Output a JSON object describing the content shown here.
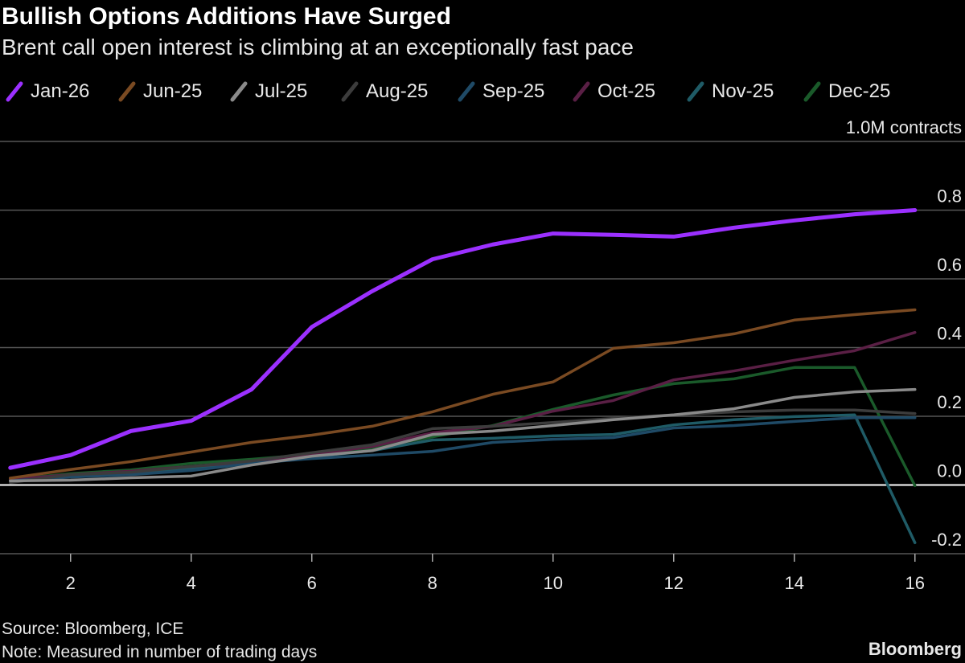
{
  "chart_data": {
    "type": "line",
    "title": "Bullish Options Additions Have Surged",
    "subtitle": "Brent call open interest is climbing at an exceptionally fast pace",
    "source": "Source: Bloomberg, ICE",
    "note": "Note: Measured in number of trading days",
    "brand": "Bloomberg",
    "x": [
      1,
      2,
      3,
      4,
      5,
      6,
      7,
      8,
      9,
      10,
      11,
      12,
      13,
      14,
      15,
      16
    ],
    "xlim": [
      0.83,
      16.83
    ],
    "xticks": [
      2,
      4,
      6,
      8,
      10,
      12,
      14,
      16
    ],
    "ylim": [
      -0.2,
      1.0
    ],
    "yticks": [
      -0.2,
      {
        "value": 0,
        "label": "0.0"
      },
      0.2,
      0.4,
      0.6,
      0.8,
      {
        "value": 1,
        "label": "1.0M contracts"
      }
    ],
    "grid": true,
    "series": [
      {
        "name": "Jan-26",
        "color": "#9b30ff",
        "values": [
          0.05,
          0.087,
          0.157,
          0.187,
          0.278,
          0.46,
          0.564,
          0.657,
          0.7,
          0.732,
          0.728,
          0.723,
          0.749,
          0.77,
          0.788,
          0.8
        ]
      },
      {
        "name": "Jun-25",
        "color": "#7a4a22",
        "values": [
          0.02,
          0.045,
          0.068,
          0.096,
          0.124,
          0.145,
          0.171,
          0.213,
          0.264,
          0.3,
          0.398,
          0.414,
          0.44,
          0.48,
          0.496,
          0.51
        ]
      },
      {
        "name": "Jul-25",
        "color": "#8a8a8a",
        "values": [
          0.012,
          0.014,
          0.021,
          0.026,
          0.058,
          0.084,
          0.1,
          0.147,
          0.157,
          0.173,
          0.19,
          0.204,
          0.222,
          0.255,
          0.271,
          0.278
        ]
      },
      {
        "name": "Aug-25",
        "color": "#3c3c3c",
        "values": [
          0.007,
          0.03,
          0.037,
          0.054,
          0.07,
          0.094,
          0.117,
          0.164,
          0.171,
          0.182,
          0.194,
          0.204,
          0.213,
          0.218,
          0.218,
          0.208
        ]
      },
      {
        "name": "Sep-25",
        "color": "#1f4a66",
        "values": [
          0.012,
          0.023,
          0.03,
          0.042,
          0.063,
          0.077,
          0.087,
          0.098,
          0.124,
          0.133,
          0.138,
          0.166,
          0.173,
          0.185,
          0.196,
          0.196
        ]
      },
      {
        "name": "Oct-25",
        "color": "#5a1f45",
        "values": [
          0.016,
          0.03,
          0.04,
          0.054,
          0.068,
          0.089,
          0.112,
          0.152,
          0.171,
          0.215,
          0.246,
          0.306,
          0.332,
          0.363,
          0.391,
          0.444
        ]
      },
      {
        "name": "Nov-25",
        "color": "#1f5b66",
        "values": [
          0.014,
          0.028,
          0.037,
          0.049,
          0.065,
          0.082,
          0.1,
          0.131,
          0.136,
          0.143,
          0.147,
          0.175,
          0.19,
          0.199,
          0.204,
          -0.168
        ]
      },
      {
        "name": "Dec-25",
        "color": "#1a5a2a",
        "values": [
          0.016,
          0.033,
          0.044,
          0.063,
          0.075,
          0.089,
          0.108,
          0.14,
          0.173,
          0.22,
          0.262,
          0.295,
          0.309,
          0.342,
          0.342,
          -0.002
        ]
      }
    ]
  }
}
